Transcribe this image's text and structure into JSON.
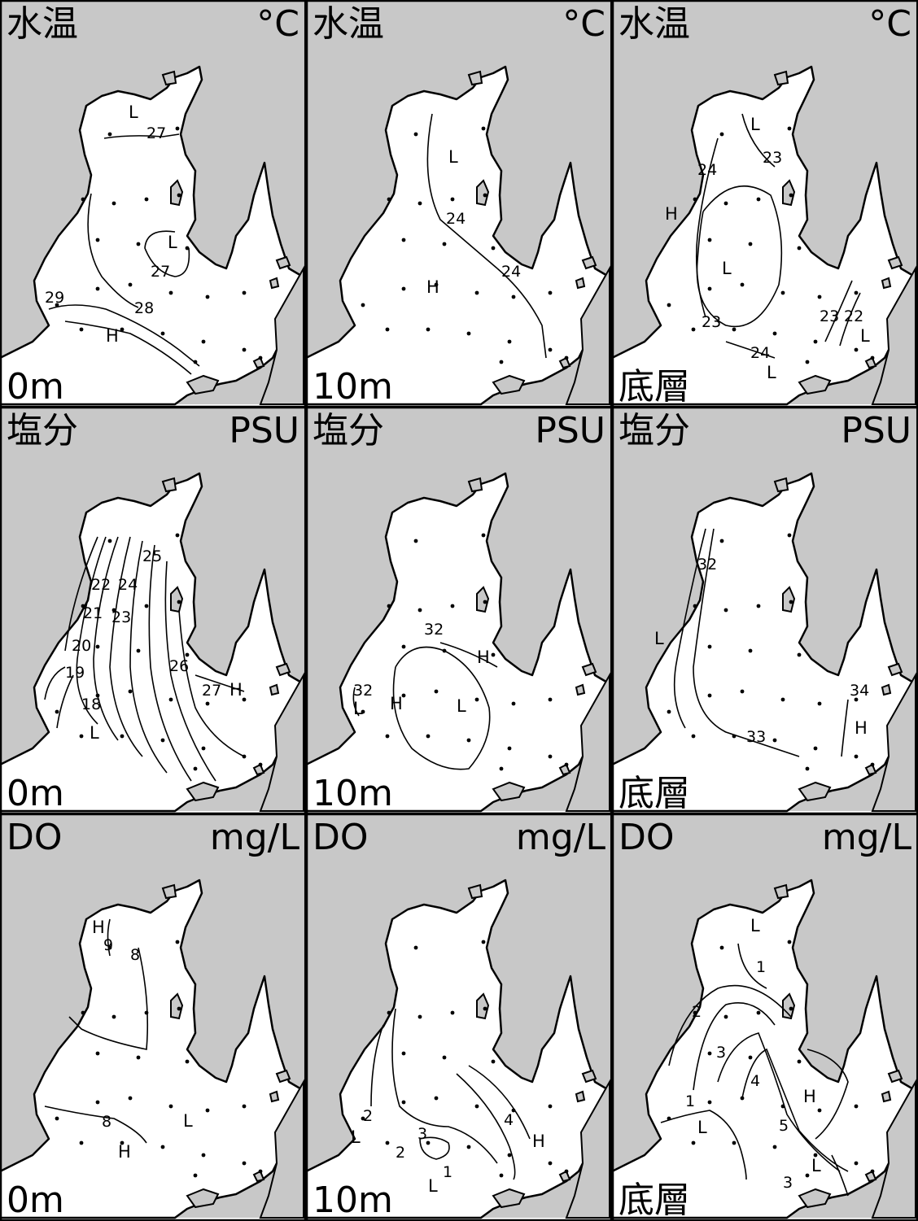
{
  "panels": [
    {
      "param": "水温",
      "unit": "°C",
      "depth": "0m",
      "labels": [
        "L",
        "27",
        "L",
        "27",
        "29",
        "28",
        "H"
      ]
    },
    {
      "param": "水温",
      "unit": "°C",
      "depth": "10m",
      "labels": [
        "L",
        "24",
        "24",
        "H"
      ]
    },
    {
      "param": "水温",
      "unit": "°C",
      "depth": "底層",
      "labels": [
        "L",
        "23",
        "24",
        "H",
        "L",
        "23",
        "23",
        "22",
        "L",
        "24",
        "L"
      ]
    },
    {
      "param": "塩分",
      "unit": "PSU",
      "depth": "0m",
      "labels": [
        "25",
        "22",
        "24",
        "21",
        "23",
        "20",
        "19",
        "26",
        "27",
        "H",
        "18",
        "L"
      ]
    },
    {
      "param": "塩分",
      "unit": "PSU",
      "depth": "10m",
      "labels": [
        "32",
        "H",
        "32",
        "L",
        "H",
        "L"
      ]
    },
    {
      "param": "塩分",
      "unit": "PSU",
      "depth": "底層",
      "labels": [
        "32",
        "L",
        "34",
        "H",
        "33"
      ]
    },
    {
      "param": "DO",
      "unit": "mg/L",
      "depth": "0m",
      "labels": [
        "H",
        "9",
        "8",
        "8",
        "L",
        "H"
      ]
    },
    {
      "param": "DO",
      "unit": "mg/L",
      "depth": "10m",
      "labels": [
        "2",
        "L",
        "3",
        "4",
        "H",
        "2",
        "1",
        "L"
      ]
    },
    {
      "param": "DO",
      "unit": "mg/L",
      "depth": "底層",
      "labels": [
        "L",
        "1",
        "2",
        "3",
        "4",
        "H",
        "1",
        "L",
        "5",
        "L",
        "3"
      ]
    }
  ]
}
